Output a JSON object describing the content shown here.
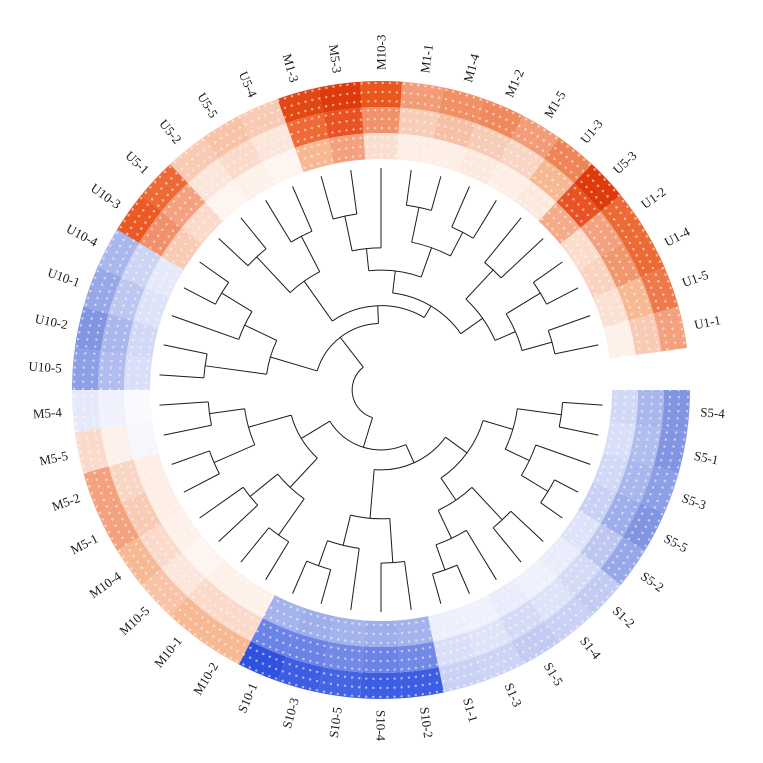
{
  "figure": {
    "title": "",
    "background": "#ffffff"
  },
  "chart_data": {
    "type": "circular_dendrogram_heatmap",
    "description": "Circular cladogram of 45 samples with a 3-track heatmap ring (red-orange = high, blue = low) and white dot texture",
    "slots": 46,
    "gap_slots": [
      11
    ],
    "first_leaf_slot": 12,
    "style": {
      "line_color": "#1c1c1c",
      "dot_color": "#ffffff",
      "label_color": "#1a1a1a"
    },
    "samples": [
      {
        "slot": 0,
        "label": "M10-3",
        "rings": [
          "#e8571c",
          "#f0926a",
          "#fbded2"
        ]
      },
      {
        "slot": 1,
        "label": "M1-1",
        "rings": [
          "#f29d78",
          "#f8cdb8",
          "#fdeee6"
        ]
      },
      {
        "slot": 2,
        "label": "M1-4",
        "rings": [
          "#f09064",
          "#f6c0a6",
          "#fdeee6"
        ]
      },
      {
        "slot": 3,
        "label": "M1-2",
        "rings": [
          "#f08a5e",
          "#f8cdb8",
          "#fceadf"
        ]
      },
      {
        "slot": 4,
        "label": "M1-5",
        "rings": [
          "#f29d78",
          "#f9d5c4",
          "#fdeee6"
        ]
      },
      {
        "slot": 5,
        "label": "U1-3",
        "rings": [
          "#ef8557",
          "#f6b994",
          "#fceadf"
        ]
      },
      {
        "slot": 6,
        "label": "U5-3",
        "rings": [
          "#de3a0c",
          "#e85224",
          "#f5ab88"
        ]
      },
      {
        "slot": 7,
        "label": "U1-2",
        "rings": [
          "#ec6a36",
          "#f3a17e",
          "#fbdccd"
        ]
      },
      {
        "slot": 8,
        "label": "U1-4",
        "rings": [
          "#ec6a36",
          "#f0976c",
          "#f9d2c0"
        ]
      },
      {
        "slot": 9,
        "label": "U1-5",
        "rings": [
          "#ee7a4c",
          "#f6b994",
          "#fbe0d4"
        ]
      },
      {
        "slot": 10,
        "label": "U1-1",
        "rings": [
          "#f3a17e",
          "#f9cab4",
          "#fdf1ea"
        ]
      },
      {
        "slot": 12,
        "label": "S5-4",
        "rings": [
          "#8195e2",
          "#a9b7ec",
          "#d1d9f6"
        ]
      },
      {
        "slot": 13,
        "label": "S5-1",
        "rings": [
          "#8195e2",
          "#b1bdee",
          "#d9dff8"
        ]
      },
      {
        "slot": 14,
        "label": "S5-3",
        "rings": [
          "#8d9fe5",
          "#a9b7ec",
          "#d1d9f6"
        ]
      },
      {
        "slot": 15,
        "label": "S5-5",
        "rings": [
          "#8195e2",
          "#9daeea",
          "#c9d2f4"
        ]
      },
      {
        "slot": 16,
        "label": "S5-2",
        "rings": [
          "#97a7e8",
          "#bdc7f0",
          "#dde3f8"
        ]
      },
      {
        "slot": 17,
        "label": "S1-2",
        "rings": [
          "#c2ccf2",
          "#d5dbf6",
          "#e9ecfb"
        ]
      },
      {
        "slot": 18,
        "label": "S1-4",
        "rings": [
          "#c9d1f4",
          "#dde3f8",
          "#eff1fc"
        ]
      },
      {
        "slot": 19,
        "label": "S1-5",
        "rings": [
          "#c2ccf2",
          "#d5dbf6",
          "#e9ecfb"
        ]
      },
      {
        "slot": 20,
        "label": "S1-3",
        "rings": [
          "#cdd5f5",
          "#dfe4f9",
          "#eff1fc"
        ]
      },
      {
        "slot": 21,
        "label": "S1-1",
        "rings": [
          "#c9d1f4",
          "#d9dff8",
          "#edf0fc"
        ]
      },
      {
        "slot": 22,
        "label": "S10-2",
        "rings": [
          "#3d5de2",
          "#7389e6",
          "#a5b3ec"
        ]
      },
      {
        "slot": 23,
        "label": "S10-4",
        "rings": [
          "#3d5de2",
          "#6b83e6",
          "#9daeea"
        ]
      },
      {
        "slot": 24,
        "label": "S10-5",
        "rings": [
          "#4564e4",
          "#7389e6",
          "#a5b3ec"
        ]
      },
      {
        "slot": 25,
        "label": "S10-3",
        "rings": [
          "#3d5de2",
          "#6b83e6",
          "#9daeea"
        ]
      },
      {
        "slot": 26,
        "label": "S10-1",
        "rings": [
          "#2f51de",
          "#6b83e6",
          "#a5b3ec"
        ]
      },
      {
        "slot": 27,
        "label": "M10-2",
        "rings": [
          "#f6b994",
          "#fbd9cb",
          "#fdf1ea"
        ]
      },
      {
        "slot": 28,
        "label": "M10-1",
        "rings": [
          "#f6b994",
          "#fbd9cb",
          "#fdf1ea"
        ]
      },
      {
        "slot": 29,
        "label": "M10-5",
        "rings": [
          "#f8c3a6",
          "#fce5da",
          "#fef5f0"
        ]
      },
      {
        "slot": 30,
        "label": "M10-4",
        "rings": [
          "#f6b994",
          "#fbd9cb",
          "#fdf1ea"
        ]
      },
      {
        "slot": 31,
        "label": "M5-1",
        "rings": [
          "#f3a17e",
          "#f9cab4",
          "#fdeee6"
        ]
      },
      {
        "slot": 32,
        "label": "M5-2",
        "rings": [
          "#f3a17e",
          "#f9d5c4",
          "#fdeee6"
        ]
      },
      {
        "slot": 33,
        "label": "M5-5",
        "rings": [
          "#fbd9cb",
          "#fdefe9",
          "#f6f6fd"
        ]
      },
      {
        "slot": 34,
        "label": "M5-4",
        "rings": [
          "#e6e9f9",
          "#eff1fc",
          "#f9f9fe"
        ]
      },
      {
        "slot": 35,
        "label": "U10-5",
        "rings": [
          "#8d9fe5",
          "#b1bdee",
          "#d9dff8"
        ]
      },
      {
        "slot": 36,
        "label": "U10-2",
        "rings": [
          "#8195e2",
          "#a9b7ec",
          "#d1d9f6"
        ]
      },
      {
        "slot": 37,
        "label": "U10-1",
        "rings": [
          "#97a7e8",
          "#bdc7f0",
          "#dde3f8"
        ]
      },
      {
        "slot": 38,
        "label": "U10-4",
        "rings": [
          "#a9b7ec",
          "#cdd5f5",
          "#e5e9fa"
        ]
      },
      {
        "slot": 39,
        "label": "U10-3",
        "rings": [
          "#eb5a24",
          "#f1906a",
          "#f9cab4"
        ]
      },
      {
        "slot": 40,
        "label": "U5-1",
        "rings": [
          "#ed6a36",
          "#f3a17e",
          "#fbd9cb"
        ]
      },
      {
        "slot": 41,
        "label": "U5-2",
        "rings": [
          "#f9cab4",
          "#fce5da",
          "#fef5f0"
        ]
      },
      {
        "slot": 42,
        "label": "U5-5",
        "rings": [
          "#f8c3a6",
          "#fbd9cb",
          "#fdf1ea"
        ]
      },
      {
        "slot": 43,
        "label": "U5-4",
        "rings": [
          "#f9cab4",
          "#fce5da",
          "#fef5f0"
        ]
      },
      {
        "slot": 44,
        "label": "M1-3",
        "rings": [
          "#e24714",
          "#ee6a36",
          "#f6b994"
        ]
      },
      {
        "slot": 45,
        "label": "M5-3",
        "rings": [
          "#de3a0c",
          "#e85224",
          "#f3a17e"
        ]
      }
    ],
    "tree": {
      "f": 0.13,
      "children": [
        {
          "f": 0.27,
          "children": [
            {
              "f": 0.36,
              "children": [
                {
                  "f": 0.48,
                  "children": [
                    {
                      "f": 0.62,
                      "children": [
                        {
                          "f": 0.82,
                          "children": [
                            {
                              "leaf": "S5-4"
                            },
                            {
                              "leaf": "S5-1"
                            }
                          ]
                        },
                        {
                          "f": 0.74,
                          "children": [
                            {
                              "leaf": "S5-3"
                            },
                            {
                              "f": 0.88,
                              "children": [
                                {
                                  "leaf": "S5-5"
                                },
                                {
                                  "leaf": "S5-2"
                                }
                              ]
                            }
                          ]
                        }
                      ]
                    },
                    {
                      "f": 0.6,
                      "children": [
                        {
                          "f": 0.8,
                          "children": [
                            {
                              "leaf": "S1-2"
                            },
                            {
                              "leaf": "S1-4"
                            }
                          ]
                        },
                        {
                          "f": 0.74,
                          "children": [
                            {
                              "leaf": "S1-5"
                            },
                            {
                              "f": 0.86,
                              "children": [
                                {
                                  "leaf": "S1-3"
                                },
                                {
                                  "leaf": "S1-1"
                                }
                              ]
                            }
                          ]
                        }
                      ]
                    }
                  ]
                },
                {
                  "f": 0.58,
                  "children": [
                    {
                      "f": 0.78,
                      "children": [
                        {
                          "leaf": "S10-2"
                        },
                        {
                          "leaf": "S10-4"
                        }
                      ]
                    },
                    {
                      "f": 0.72,
                      "children": [
                        {
                          "leaf": "S10-5"
                        },
                        {
                          "f": 0.84,
                          "children": [
                            {
                              "leaf": "S10-3"
                            },
                            {
                              "leaf": "S10-1"
                            }
                          ]
                        }
                      ]
                    }
                  ]
                }
              ]
            },
            {
              "f": 0.42,
              "children": [
                {
                  "f": 0.6,
                  "children": [
                    {
                      "f": 0.8,
                      "children": [
                        {
                          "leaf": "M10-2"
                        },
                        {
                          "leaf": "M10-1"
                        }
                      ]
                    },
                    {
                      "f": 0.76,
                      "children": [
                        {
                          "leaf": "M10-5"
                        },
                        {
                          "leaf": "M10-4"
                        }
                      ]
                    }
                  ]
                },
                {
                  "f": 0.62,
                  "children": [
                    {
                      "f": 0.82,
                      "children": [
                        {
                          "leaf": "M5-1"
                        },
                        {
                          "leaf": "M5-2"
                        }
                      ]
                    },
                    {
                      "f": 0.78,
                      "children": [
                        {
                          "leaf": "M5-5"
                        },
                        {
                          "leaf": "M5-4"
                        }
                      ]
                    }
                  ]
                }
              ]
            }
          ]
        },
        {
          "f": 0.3,
          "children": [
            {
              "f": 0.52,
              "children": [
                {
                  "f": 0.8,
                  "children": [
                    {
                      "leaf": "U10-5"
                    },
                    {
                      "leaf": "U10-2"
                    }
                  ]
                },
                {
                  "f": 0.68,
                  "children": [
                    {
                      "leaf": "U10-1"
                    },
                    {
                      "f": 0.84,
                      "children": [
                        {
                          "leaf": "U10-4"
                        },
                        {
                          "leaf": "U10-3"
                        }
                      ]
                    }
                  ]
                }
              ]
            },
            {
              "f": 0.38,
              "children": [
                {
                  "f": 0.6,
                  "children": [
                    {
                      "f": 0.82,
                      "children": [
                        {
                          "leaf": "U5-1"
                        },
                        {
                          "leaf": "U5-2"
                        }
                      ]
                    },
                    {
                      "f": 0.78,
                      "children": [
                        {
                          "leaf": "U5-5"
                        },
                        {
                          "leaf": "U5-4"
                        }
                      ]
                    }
                  ]
                },
                {
                  "f": 0.44,
                  "children": [
                    {
                      "f": 0.54,
                      "children": [
                        {
                          "f": 0.64,
                          "children": [
                            {
                              "f": 0.8,
                              "children": [
                                {
                                  "leaf": "M1-3"
                                },
                                {
                                  "leaf": "M5-3"
                                }
                              ]
                            },
                            {
                              "leaf": "M10-3"
                            }
                          ]
                        },
                        {
                          "f": 0.68,
                          "children": [
                            {
                              "f": 0.84,
                              "children": [
                                {
                                  "leaf": "M1-1"
                                },
                                {
                                  "leaf": "M1-4"
                                }
                              ]
                            },
                            {
                              "f": 0.8,
                              "children": [
                                {
                                  "leaf": "M1-2"
                                },
                                {
                                  "leaf": "M1-5"
                                }
                              ]
                            }
                          ]
                        }
                      ]
                    },
                    {
                      "f": 0.56,
                      "children": [
                        {
                          "f": 0.74,
                          "children": [
                            {
                              "leaf": "U1-3"
                            },
                            {
                              "leaf": "U5-3"
                            }
                          ]
                        },
                        {
                          "f": 0.66,
                          "children": [
                            {
                              "f": 0.84,
                              "children": [
                                {
                                  "leaf": "U1-2"
                                },
                                {
                                  "leaf": "U1-4"
                                }
                              ]
                            },
                            {
                              "f": 0.8,
                              "children": [
                                {
                                  "leaf": "U1-5"
                                },
                                {
                                  "leaf": "U1-1"
                                }
                              ]
                            }
                          ]
                        }
                      ]
                    }
                  ]
                }
              ]
            }
          ]
        }
      ]
    }
  }
}
